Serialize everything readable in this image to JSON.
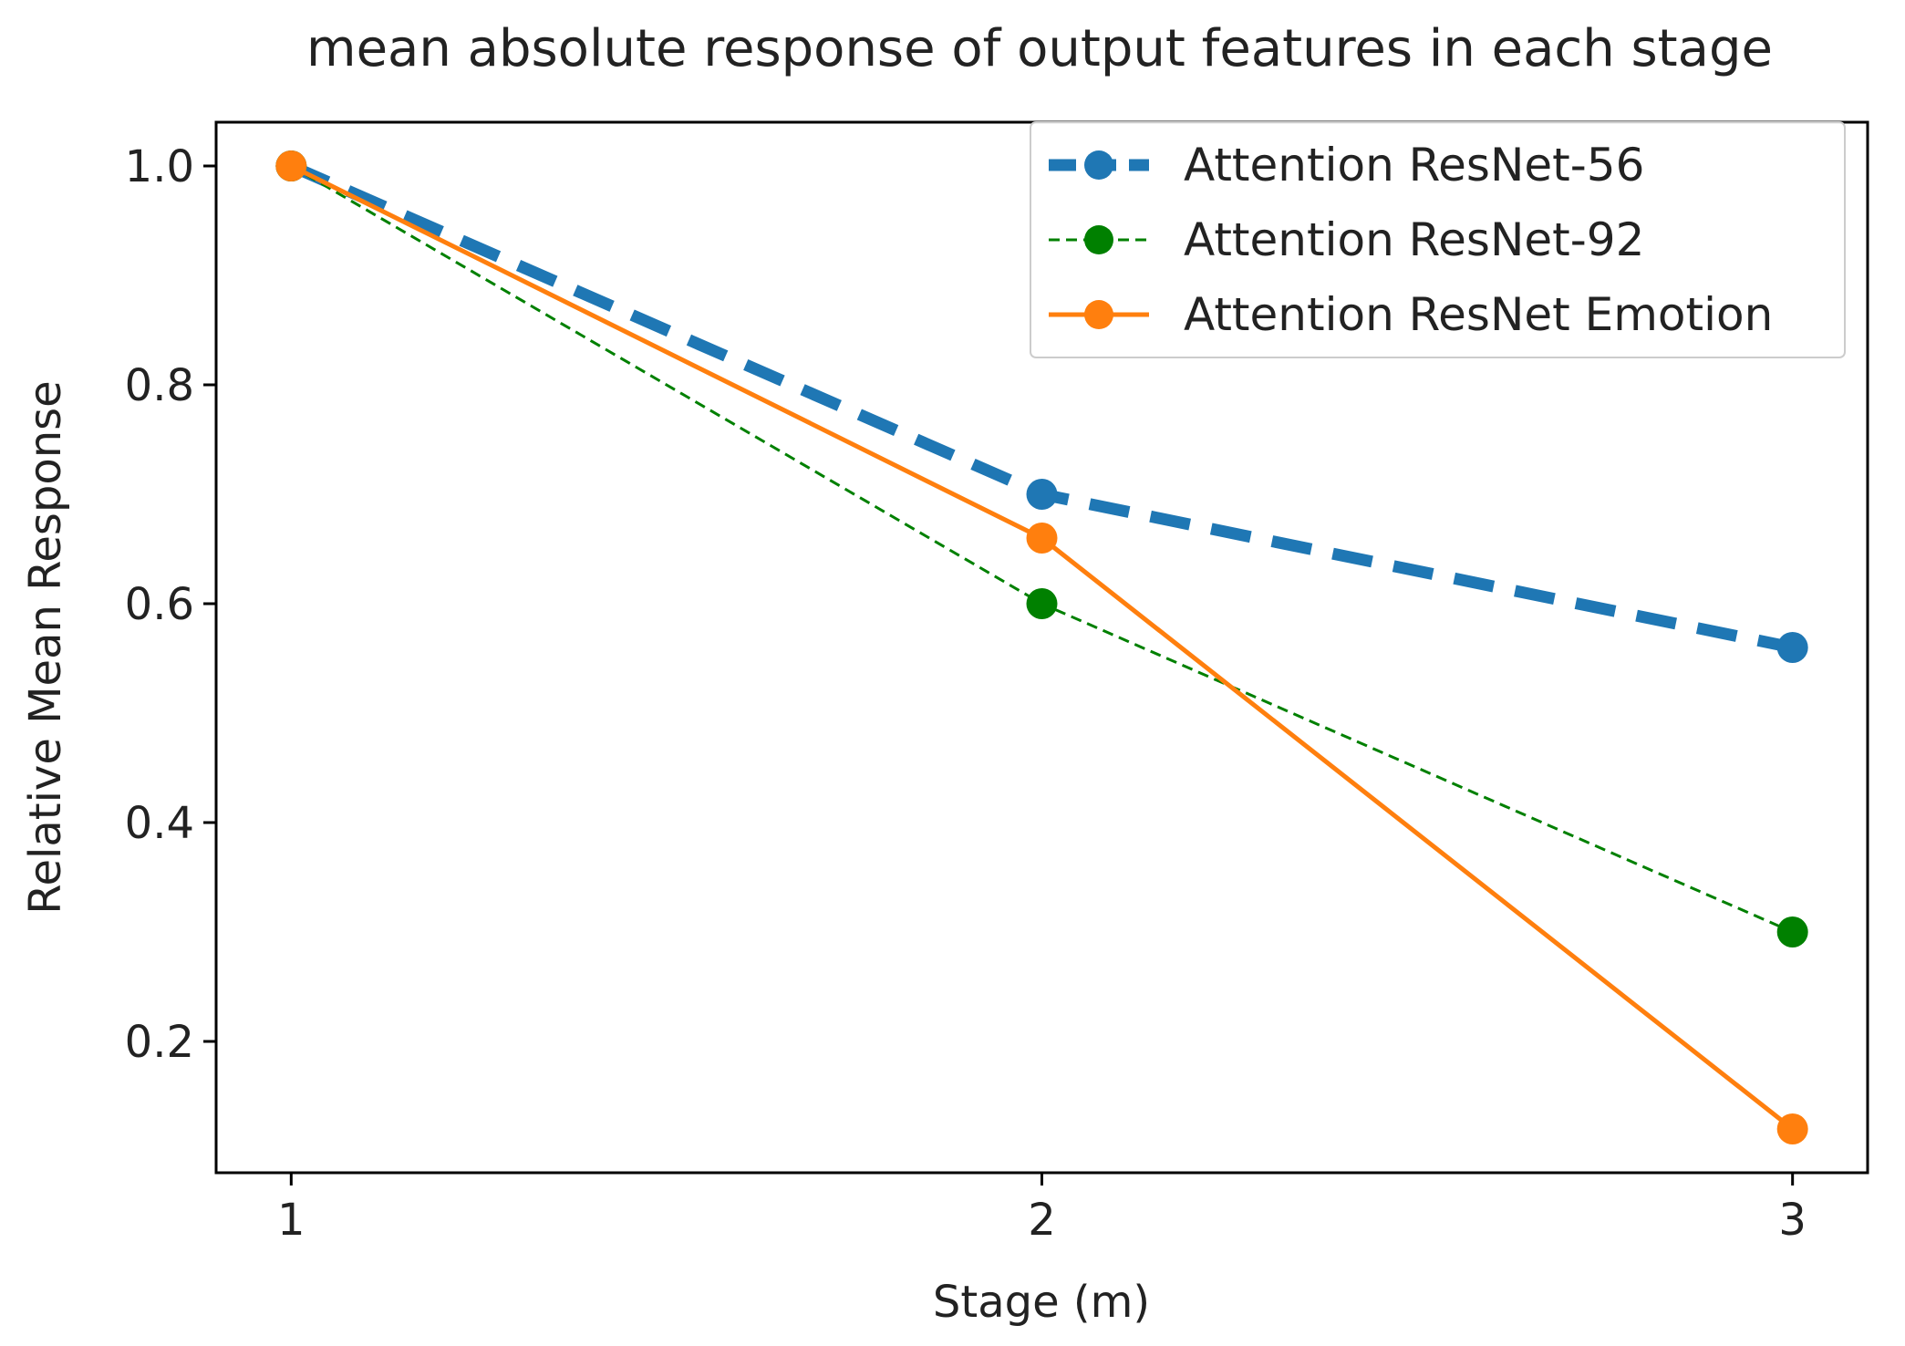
{
  "chart_data": {
    "type": "line",
    "title": "mean absolute response of output features in each stage",
    "xlabel": "Stage (m)",
    "ylabel": "Relative Mean Response",
    "x": [
      1,
      2,
      3
    ],
    "xticks": [
      "1",
      "2",
      "3"
    ],
    "yticks": [
      "0.2",
      "0.4",
      "0.6",
      "0.8",
      "1.0"
    ],
    "xlim": [
      0.9,
      3.1
    ],
    "ylim": [
      0.08,
      1.04
    ],
    "grid": false,
    "legend_position": "top-right",
    "series": [
      {
        "name": "Attention ResNet-56",
        "values": [
          1.0,
          0.7,
          0.56
        ],
        "color": "#1f77b4",
        "style": "dashed-thick"
      },
      {
        "name": "Attention ResNet-92",
        "values": [
          1.0,
          0.6,
          0.3
        ],
        "color": "#008000",
        "style": "dashed-thin"
      },
      {
        "name": "Attention ResNet Emotion",
        "values": [
          1.0,
          0.66,
          0.12
        ],
        "color": "#ff7f0e",
        "style": "solid"
      }
    ]
  }
}
